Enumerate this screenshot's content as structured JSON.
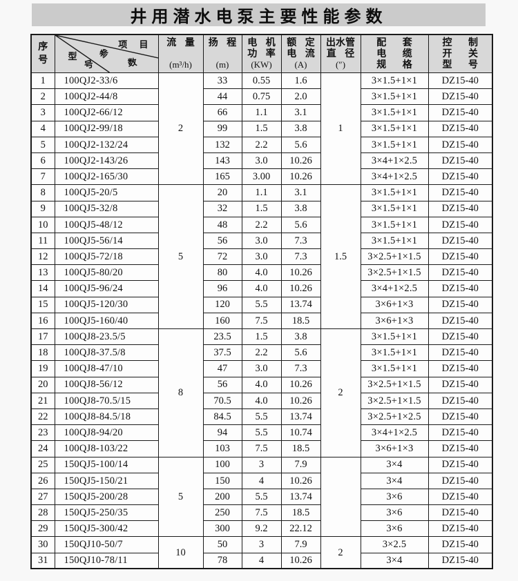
{
  "title": "井用潜水电泵主要性能参数",
  "colors": {
    "page_bg": "#f8f8f8",
    "band_bg": "#cbcbcb",
    "header_bg": "#d8d8d8",
    "body_bg": "#fdfdfd",
    "border": "#1a1a1a",
    "ink": "#111111"
  },
  "header": {
    "seq": [
      "序",
      "号"
    ],
    "diag": {
      "item": "项 目",
      "param_1": "参",
      "param_2": "数",
      "model_1": "型",
      "model_2": "号"
    },
    "flow": [
      "流 量",
      "(m³/h)"
    ],
    "head": [
      "扬 程",
      "(m)"
    ],
    "power": [
      "电 机",
      "功 率",
      "(KW)"
    ],
    "current": [
      "额 定",
      "电 流",
      "(A)"
    ],
    "outlet": [
      "出水管",
      "直 径",
      "(″)"
    ],
    "cable": [
      "配 套",
      "电 缆",
      "规 格"
    ],
    "switch": [
      "控 制",
      "开 关",
      "型 号"
    ]
  },
  "table": {
    "rows": [
      {
        "no": "1",
        "model": "100QJ2-33/6",
        "head": "33",
        "power": "0.55",
        "current": "1.6",
        "cable": "3×1.5+1×1",
        "sw": "DZ15-40"
      },
      {
        "no": "2",
        "model": "100QJ2-44/8",
        "head": "44",
        "power": "0.75",
        "current": "2.0",
        "cable": "3×1.5+1×1",
        "sw": "DZ15-40"
      },
      {
        "no": "3",
        "model": "100QJ2-66/12",
        "head": "66",
        "power": "1.1",
        "current": "3.1",
        "cable": "3×1.5+1×1",
        "sw": "DZ15-40"
      },
      {
        "no": "4",
        "model": "100QJ2-99/18",
        "head": "99",
        "power": "1.5",
        "current": "3.8",
        "cable": "3×1.5+1×1",
        "sw": "DZ15-40"
      },
      {
        "no": "5",
        "model": "100QJ2-132/24",
        "head": "132",
        "power": "2.2",
        "current": "5.6",
        "cable": "3×1.5+1×1",
        "sw": "DZ15-40"
      },
      {
        "no": "6",
        "model": "100QJ2-143/26",
        "head": "143",
        "power": "3.0",
        "current": "10.26",
        "cable": "3×4+1×2.5",
        "sw": "DZ15-40"
      },
      {
        "no": "7",
        "model": "100QJ2-165/30",
        "head": "165",
        "power": "3.00",
        "current": "10.26",
        "cable": "3×4+1×2.5",
        "sw": "DZ15-40"
      },
      {
        "no": "8",
        "model": "100QJ5-20/5",
        "head": "20",
        "power": "1.1",
        "current": "3.1",
        "cable": "3×1.5+1×1",
        "sw": "DZ15-40"
      },
      {
        "no": "9",
        "model": "100QJ5-32/8",
        "head": "32",
        "power": "1.5",
        "current": "3.8",
        "cable": "3×1.5+1×1",
        "sw": "DZ15-40"
      },
      {
        "no": "10",
        "model": "100QJ5-48/12",
        "head": "48",
        "power": "2.2",
        "current": "5.6",
        "cable": "3×1.5+1×1",
        "sw": "DZ15-40"
      },
      {
        "no": "11",
        "model": "100QJ5-56/14",
        "head": "56",
        "power": "3.0",
        "current": "7.3",
        "cable": "3×1.5+1×1",
        "sw": "DZ15-40"
      },
      {
        "no": "12",
        "model": "100QJ5-72/18",
        "head": "72",
        "power": "3.0",
        "current": "7.3",
        "cable": "3×2.5+1×1.5",
        "sw": "DZ15-40"
      },
      {
        "no": "13",
        "model": "100QJ5-80/20",
        "head": "80",
        "power": "4.0",
        "current": "10.26",
        "cable": "3×2.5+1×1.5",
        "sw": "DZ15-40"
      },
      {
        "no": "14",
        "model": "100QJ5-96/24",
        "head": "96",
        "power": "4.0",
        "current": "10.26",
        "cable": "3×4+1×2.5",
        "sw": "DZ15-40"
      },
      {
        "no": "15",
        "model": "100QJ5-120/30",
        "head": "120",
        "power": "5.5",
        "current": "13.74",
        "cable": "3×6+1×3",
        "sw": "DZ15-40"
      },
      {
        "no": "16",
        "model": "100QJ5-160/40",
        "head": "160",
        "power": "7.5",
        "current": "18.5",
        "cable": "3×6+1×3",
        "sw": "DZ15-40"
      },
      {
        "no": "17",
        "model": "100QJ8-23.5/5",
        "head": "23.5",
        "power": "1.5",
        "current": "3.8",
        "cable": "3×1.5+1×1",
        "sw": "DZ15-40"
      },
      {
        "no": "18",
        "model": "100QJ8-37.5/8",
        "head": "37.5",
        "power": "2.2",
        "current": "5.6",
        "cable": "3×1.5+1×1",
        "sw": "DZ15-40"
      },
      {
        "no": "19",
        "model": "100QJ8-47/10",
        "head": "47",
        "power": "3.0",
        "current": "7.3",
        "cable": "3×1.5+1×1",
        "sw": "DZ15-40"
      },
      {
        "no": "20",
        "model": "100QJ8-56/12",
        "head": "56",
        "power": "4.0",
        "current": "10.26",
        "cable": "3×2.5+1×1.5",
        "sw": "DZ15-40"
      },
      {
        "no": "21",
        "model": "100QJ8-70.5/15",
        "head": "70.5",
        "power": "4.0",
        "current": "10.26",
        "cable": "3×2.5+1×1.5",
        "sw": "DZ15-40"
      },
      {
        "no": "22",
        "model": "100QJ8-84.5/18",
        "head": "84.5",
        "power": "5.5",
        "current": "13.74",
        "cable": "3×2.5+1×2.5",
        "sw": "DZ15-40"
      },
      {
        "no": "23",
        "model": "100QJ8-94/20",
        "head": "94",
        "power": "5.5",
        "current": "10.74",
        "cable": "3×4+1×2.5",
        "sw": "DZ15-40"
      },
      {
        "no": "24",
        "model": "100QJ8-103/22",
        "head": "103",
        "power": "7.5",
        "current": "18.5",
        "cable": "3×6+1×3",
        "sw": "DZ15-40"
      },
      {
        "no": "25",
        "model": "150QJ5-100/14",
        "head": "100",
        "power": "3",
        "current": "7.9",
        "cable": "3×4",
        "sw": "DZ15-40"
      },
      {
        "no": "26",
        "model": "150QJ5-150/21",
        "head": "150",
        "power": "4",
        "current": "10.26",
        "cable": "3×4",
        "sw": "DZ15-40"
      },
      {
        "no": "27",
        "model": "150QJ5-200/28",
        "head": "200",
        "power": "5.5",
        "current": "13.74",
        "cable": "3×6",
        "sw": "DZ15-40"
      },
      {
        "no": "28",
        "model": "150QJ5-250/35",
        "head": "250",
        "power": "7.5",
        "current": "18.5",
        "cable": "3×6",
        "sw": "DZ15-40"
      },
      {
        "no": "29",
        "model": "150QJ5-300/42",
        "head": "300",
        "power": "9.2",
        "current": "22.12",
        "cable": "3×6",
        "sw": "DZ15-40"
      },
      {
        "no": "30",
        "model": "150QJ10-50/7",
        "head": "50",
        "power": "3",
        "current": "7.9",
        "cable": "3×2.5",
        "sw": "DZ15-40"
      },
      {
        "no": "31",
        "model": "150QJ10-78/11",
        "head": "78",
        "power": "4",
        "current": "10.26",
        "cable": "3×4",
        "sw": "DZ15-40"
      }
    ],
    "merges": {
      "flow": [
        {
          "start": 0,
          "span": 7,
          "value": "2"
        },
        {
          "start": 7,
          "span": 9,
          "value": "5"
        },
        {
          "start": 16,
          "span": 8,
          "value": "8"
        },
        {
          "start": 24,
          "span": 5,
          "value": "5"
        },
        {
          "start": 29,
          "span": 2,
          "value": "10"
        }
      ],
      "outlet": [
        {
          "start": 0,
          "span": 7,
          "value": "1"
        },
        {
          "start": 7,
          "span": 9,
          "value": "1.5"
        },
        {
          "start": 16,
          "span": 8,
          "value": "2"
        },
        {
          "start": 24,
          "span": 5,
          "value": ""
        },
        {
          "start": 29,
          "span": 2,
          "value": "2"
        }
      ]
    }
  }
}
